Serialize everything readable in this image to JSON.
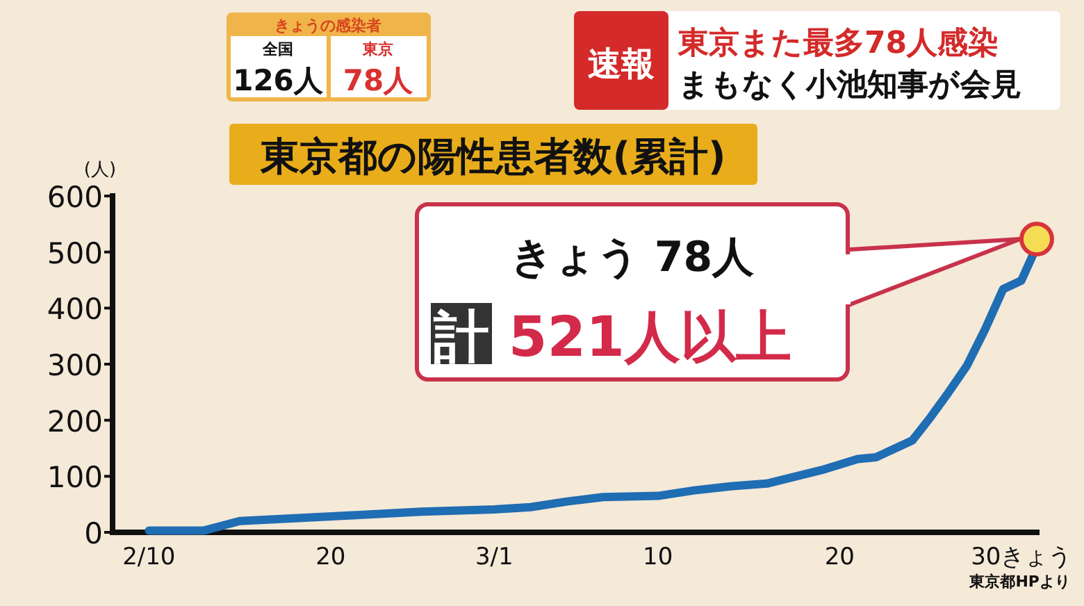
{
  "chart_data": {
    "type": "line",
    "title": "東京都の陽性患者数(累計)",
    "ylabel": "(人)",
    "color": "#1f6db3",
    "x": [
      "--02-10",
      "--02-13",
      "--02-15",
      "--02-18",
      "--02-21",
      "--02-25",
      "--03-01",
      "--03-03",
      "--03-05",
      "--03-07",
      "--03-10",
      "--03-12",
      "--03-14",
      "--03-16",
      "--03-19",
      "--03-21",
      "--03-22",
      "--03-24",
      "--03-25",
      "--03-26",
      "--03-27",
      "--03-28",
      "--03-29",
      "--03-30",
      "--03-31"
    ],
    "values": [
      3,
      3,
      20,
      25,
      30,
      37,
      41,
      45,
      55,
      63,
      65,
      75,
      82,
      87,
      111,
      131,
      134,
      164,
      205,
      250,
      297,
      362,
      434,
      449,
      521
    ],
    "xlim": [
      "--02-08",
      "--03-31"
    ],
    "xticks": [
      {
        "value": "--02-10",
        "label": "2/10"
      },
      {
        "value": "--02-20",
        "label": "20"
      },
      {
        "value": "--03-01",
        "label": "3/1"
      },
      {
        "value": "--03-10",
        "label": "10"
      },
      {
        "value": "--03-20",
        "label": "20"
      },
      {
        "value": "--03-30",
        "label": "30きょう"
      }
    ],
    "ylim": [
      0,
      600
    ],
    "yticks": [
      0,
      100,
      200,
      300,
      400,
      500,
      600
    ],
    "annotations": [
      "きょうの感染者",
      "全国",
      "126人",
      "東京",
      "78人",
      "速報",
      "東京また最多78人感染",
      "まもなく小池知事が会見",
      "きょう 78人",
      "計 521人以上",
      "東京都HPより"
    ]
  }
}
